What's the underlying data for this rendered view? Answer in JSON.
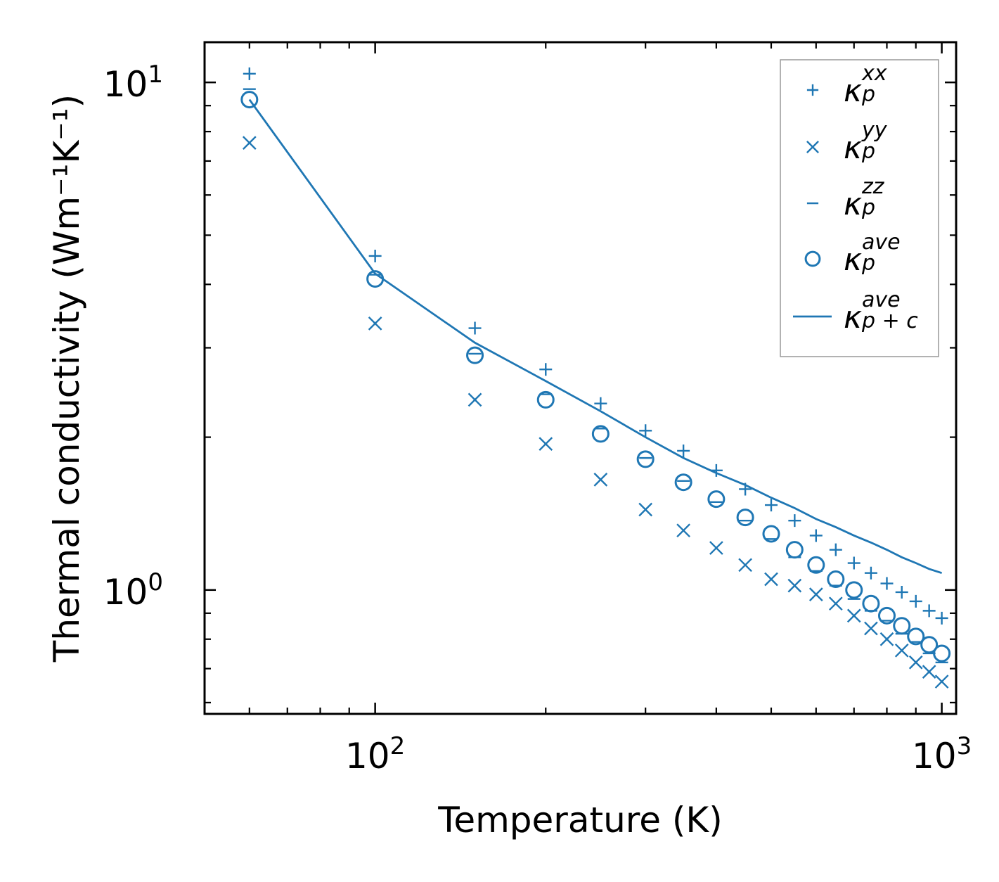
{
  "chart_data": {
    "type": "scatter",
    "title": "",
    "xlabel": "Temperature (K)",
    "ylabel": "Thermal conductivity (Wm⁻¹K⁻¹)",
    "xscale": "log",
    "yscale": "log",
    "xlim": [
      50,
      1060
    ],
    "ylim": [
      0.57,
      12.0
    ],
    "xticks": [
      {
        "base": "10",
        "exp": "2",
        "value": 100
      },
      {
        "base": "10",
        "exp": "3",
        "value": 1000
      }
    ],
    "yticks": [
      {
        "base": "10",
        "exp": "0",
        "value": 1
      },
      {
        "base": "10",
        "exp": "1",
        "value": 10
      }
    ],
    "color": "#1f77b4",
    "legend_position": "top-right",
    "x": [
      60,
      100,
      150,
      200,
      250,
      300,
      350,
      400,
      450,
      500,
      550,
      600,
      650,
      700,
      750,
      800,
      850,
      900,
      950,
      1000
    ],
    "series": [
      {
        "name": "κ_p^xx",
        "kappa": "κ",
        "sub": "p",
        "sup": "xx",
        "marker": "plus",
        "values": [
          10.4,
          4.55,
          3.28,
          2.72,
          2.33,
          2.06,
          1.88,
          1.72,
          1.58,
          1.47,
          1.37,
          1.28,
          1.2,
          1.13,
          1.08,
          1.03,
          0.99,
          0.95,
          0.91,
          0.88
        ]
      },
      {
        "name": "κ_p^yy",
        "kappa": "κ",
        "sub": "p",
        "sup": "yy",
        "marker": "x",
        "values": [
          7.6,
          3.35,
          2.37,
          1.94,
          1.65,
          1.44,
          1.31,
          1.21,
          1.12,
          1.05,
          1.02,
          0.98,
          0.94,
          0.89,
          0.84,
          0.8,
          0.76,
          0.72,
          0.69,
          0.66
        ]
      },
      {
        "name": "κ_p^zz",
        "kappa": "κ",
        "sub": "p",
        "sup": "zz",
        "marker": "hline",
        "values": [
          9.7,
          4.18,
          2.92,
          2.43,
          2.08,
          1.82,
          1.64,
          1.49,
          1.37,
          1.26,
          1.16,
          1.09,
          1.02,
          0.96,
          0.91,
          0.87,
          0.82,
          0.79,
          0.75,
          0.72
        ]
      },
      {
        "name": "κ_p^ave",
        "kappa": "κ",
        "sub": "p",
        "sup": "ave",
        "marker": "circle",
        "values": [
          9.25,
          4.1,
          2.9,
          2.37,
          2.03,
          1.81,
          1.63,
          1.51,
          1.39,
          1.29,
          1.2,
          1.12,
          1.05,
          1.0,
          0.94,
          0.89,
          0.85,
          0.81,
          0.78,
          0.75
        ]
      },
      {
        "name": "κ_{p+c}^ave",
        "kappa": "κ",
        "sub": "p + c",
        "sup": "ave",
        "marker": "line",
        "values": [
          9.25,
          4.2,
          3.07,
          2.58,
          2.25,
          2.0,
          1.82,
          1.7,
          1.61,
          1.52,
          1.45,
          1.38,
          1.33,
          1.28,
          1.24,
          1.2,
          1.16,
          1.13,
          1.1,
          1.08
        ]
      }
    ]
  }
}
